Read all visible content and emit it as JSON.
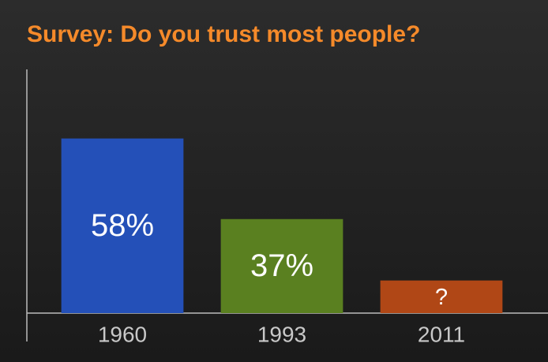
{
  "chart_data": {
    "type": "bar",
    "title": "Survey: Do you trust most people?",
    "categories": [
      "1960",
      "1993",
      "2011"
    ],
    "values": [
      58,
      37,
      21
    ],
    "value_labels": [
      "58%",
      "37%",
      "?"
    ],
    "colors": [
      "#2450b8",
      "#5a8020",
      "#b04716"
    ],
    "ylim": [
      12.5,
      76
    ]
  }
}
